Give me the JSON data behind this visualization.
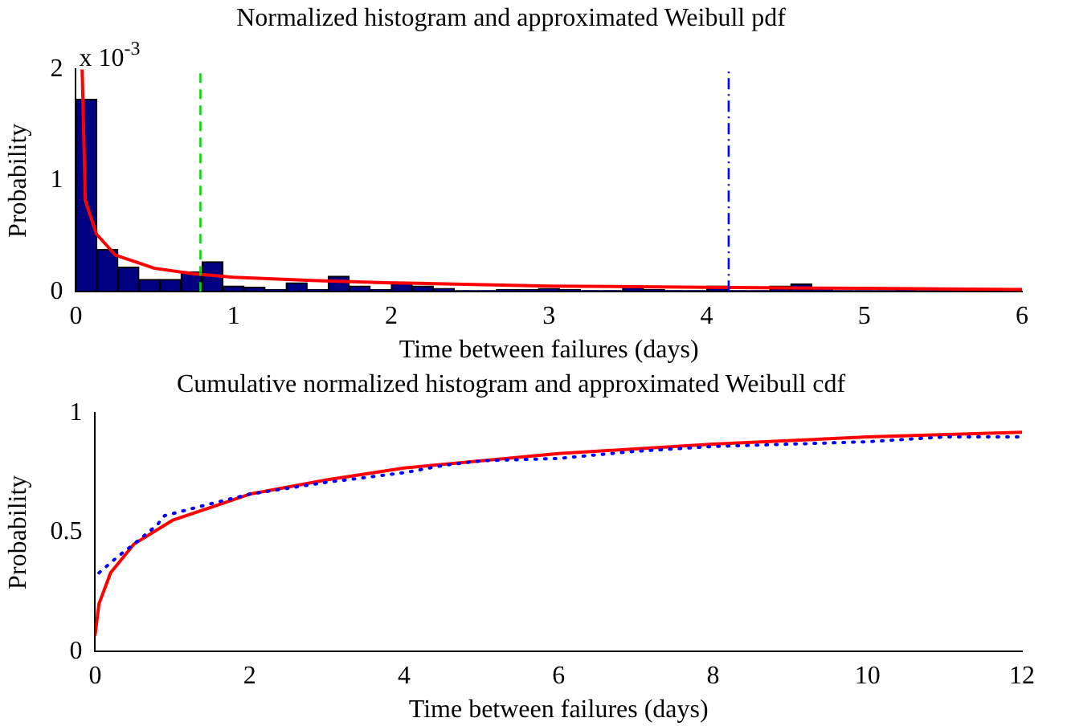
{
  "chart_data": [
    {
      "type": "histogram",
      "title": "Normalized histogram and approximated Weibull pdf",
      "xlabel": "Time between failures (days)",
      "ylabel": "Probability",
      "annotations": [
        "x 10$^{-3}$"
      ],
      "series": [
        {
          "type": "histogram",
          "color": "#000080",
          "bins": [
            0,
            0.1333,
            0.2667,
            0.4,
            0.5333,
            0.6667,
            0.8,
            0.9333,
            1.0667,
            1.2,
            1.3333,
            1.4667,
            1.6,
            1.7333,
            1.8667,
            2,
            2.1333,
            2.2667,
            2.4,
            2.5333,
            2.6667,
            2.8,
            2.9333,
            3.0667,
            3.2,
            3.3333,
            3.4667,
            3.6,
            3.7333,
            3.8667,
            4,
            4.1333,
            4.2667,
            4.4,
            4.5333,
            4.6667,
            4.8,
            4.9333,
            5.0667,
            5.2,
            5.3333,
            5.4667,
            5.6,
            5.7333,
            5.8667,
            6
          ],
          "values": [
            1.73,
            0.38,
            0.22,
            0.11,
            0.11,
            0.18,
            0.27,
            0.05,
            0.04,
            0.02,
            0.08,
            0.02,
            0.14,
            0.05,
            0.02,
            0.08,
            0.05,
            0.03,
            0.01,
            0.01,
            0.02,
            0.02,
            0.03,
            0.02,
            0.01,
            0.01,
            0.05,
            0.02,
            0.01,
            0.01,
            0.05,
            0.01,
            0.01,
            0.05,
            0.07,
            0.03,
            0.01,
            0.01,
            0.01,
            0.03,
            0.01,
            0.01,
            0.01,
            0.01,
            0.01
          ]
        },
        {
          "type": "line",
          "color": "#ff0000",
          "x": [
            0.04,
            0.06,
            0.13,
            0.25,
            0.5,
            0.75,
            1,
            1.5,
            2,
            3,
            4,
            5,
            6
          ],
          "values": [
            2,
            0.82,
            0.52,
            0.33,
            0.21,
            0.16,
            0.13,
            0.1,
            0.08,
            0.05,
            0.04,
            0.03,
            0.02
          ]
        }
      ],
      "ref_lines": [
        {
          "axis": "x",
          "value": 0.79,
          "color": "#00dd00",
          "line_style": "dashed"
        },
        {
          "axis": "x",
          "value": 4.14,
          "color": "#0000ff",
          "line_style": "dashdot"
        }
      ],
      "xlim": [
        0,
        6
      ],
      "xticks": [
        0,
        1,
        2,
        3,
        4,
        5,
        6
      ],
      "ylim": [
        0,
        2
      ],
      "yticks": [
        0,
        1,
        2
      ],
      "grid": false,
      "legend": false
    },
    {
      "type": "line",
      "title": "Cumulative normalized histogram and approximated Weibull cdf",
      "xlabel": "Time between failures (days)",
      "ylabel": "Probability",
      "series": [
        {
          "color": "#0000ff",
          "line_style": "dotted",
          "x": [
            0.05,
            0.3,
            0.5,
            0.8,
            0.9,
            1.5,
            2,
            3,
            4,
            4.5,
            5,
            6,
            7,
            8,
            9,
            10,
            11,
            12
          ],
          "values": [
            0.33,
            0.4,
            0.45,
            0.53,
            0.57,
            0.62,
            0.66,
            0.71,
            0.75,
            0.78,
            0.8,
            0.81,
            0.84,
            0.86,
            0.87,
            0.88,
            0.9,
            0.9
          ]
        },
        {
          "color": "#ff0000",
          "line_style": "solid",
          "x": [
            0,
            0.05,
            0.2,
            0.5,
            1,
            2,
            3,
            4,
            6,
            8,
            10,
            12
          ],
          "values": [
            0.07,
            0.2,
            0.33,
            0.45,
            0.55,
            0.66,
            0.72,
            0.77,
            0.83,
            0.87,
            0.9,
            0.92
          ]
        }
      ],
      "xlim": [
        0,
        12
      ],
      "xticks": [
        0,
        2,
        4,
        6,
        8,
        10,
        12
      ],
      "ylim": [
        0,
        1
      ],
      "yticks": [
        0,
        0.5,
        1
      ],
      "grid": false,
      "legend": false
    }
  ]
}
